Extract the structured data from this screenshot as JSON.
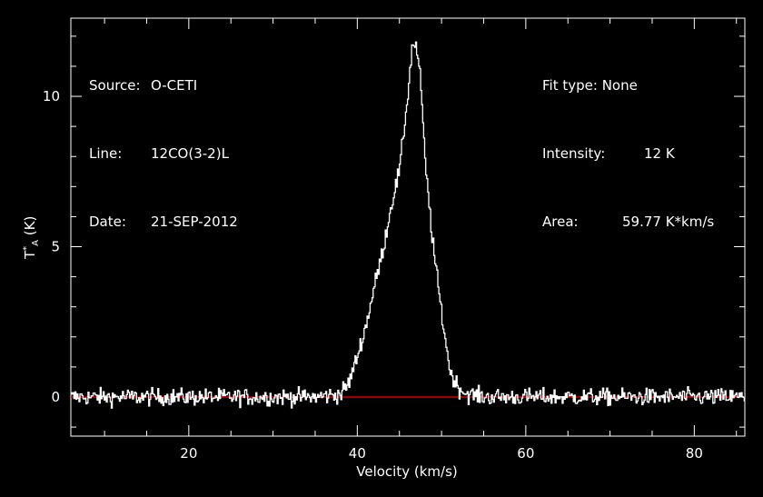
{
  "header_left": {
    "source_label": "Source:",
    "source_value": "O-CETI",
    "line_label": "Line:",
    "line_value": "12CO(3-2)L",
    "date_label": "Date:",
    "date_value": "21-SEP-2012"
  },
  "header_right": {
    "fit_label": "Fit type:",
    "fit_value": "None",
    "intensity_label": "Intensity:",
    "intensity_value": "12 K",
    "area_label": "Area:",
    "area_value": "59.77 K*km/s"
  },
  "chart_data": {
    "type": "line",
    "title": "",
    "xlabel": "Velocity (km/s)",
    "ylabel_main": "T",
    "ylabel_sup": "*",
    "ylabel_sub": "A",
    "ylabel_unit": " (K)",
    "xlim": [
      6,
      86
    ],
    "ylim": [
      -1.3,
      12.6
    ],
    "xticks": [
      20,
      40,
      60,
      80
    ],
    "yticks": [
      0,
      5,
      10
    ],
    "baseline": 0,
    "series": [
      {
        "x": [
          6,
          10,
          15,
          20,
          25,
          30,
          35,
          38,
          39,
          40,
          41,
          42,
          43,
          44,
          45,
          46,
          46.5,
          47,
          47.5,
          48,
          49,
          50,
          51,
          52,
          53,
          55,
          60,
          65,
          70,
          75,
          80,
          86
        ],
        "y": [
          0,
          0,
          0,
          0,
          0,
          0,
          0,
          0.1,
          0.5,
          1.4,
          2.4,
          3.7,
          4.9,
          6.4,
          7.6,
          10.2,
          11.8,
          11.6,
          10.4,
          7.8,
          4.9,
          2.7,
          0.8,
          0.3,
          0.1,
          0,
          0,
          0,
          0,
          0,
          0,
          0
        ]
      }
    ],
    "noise_rms": 0.2,
    "colors": {
      "spectrum": "#ffffff",
      "baseline": "#ff0000",
      "axes": "#ffffff"
    }
  }
}
